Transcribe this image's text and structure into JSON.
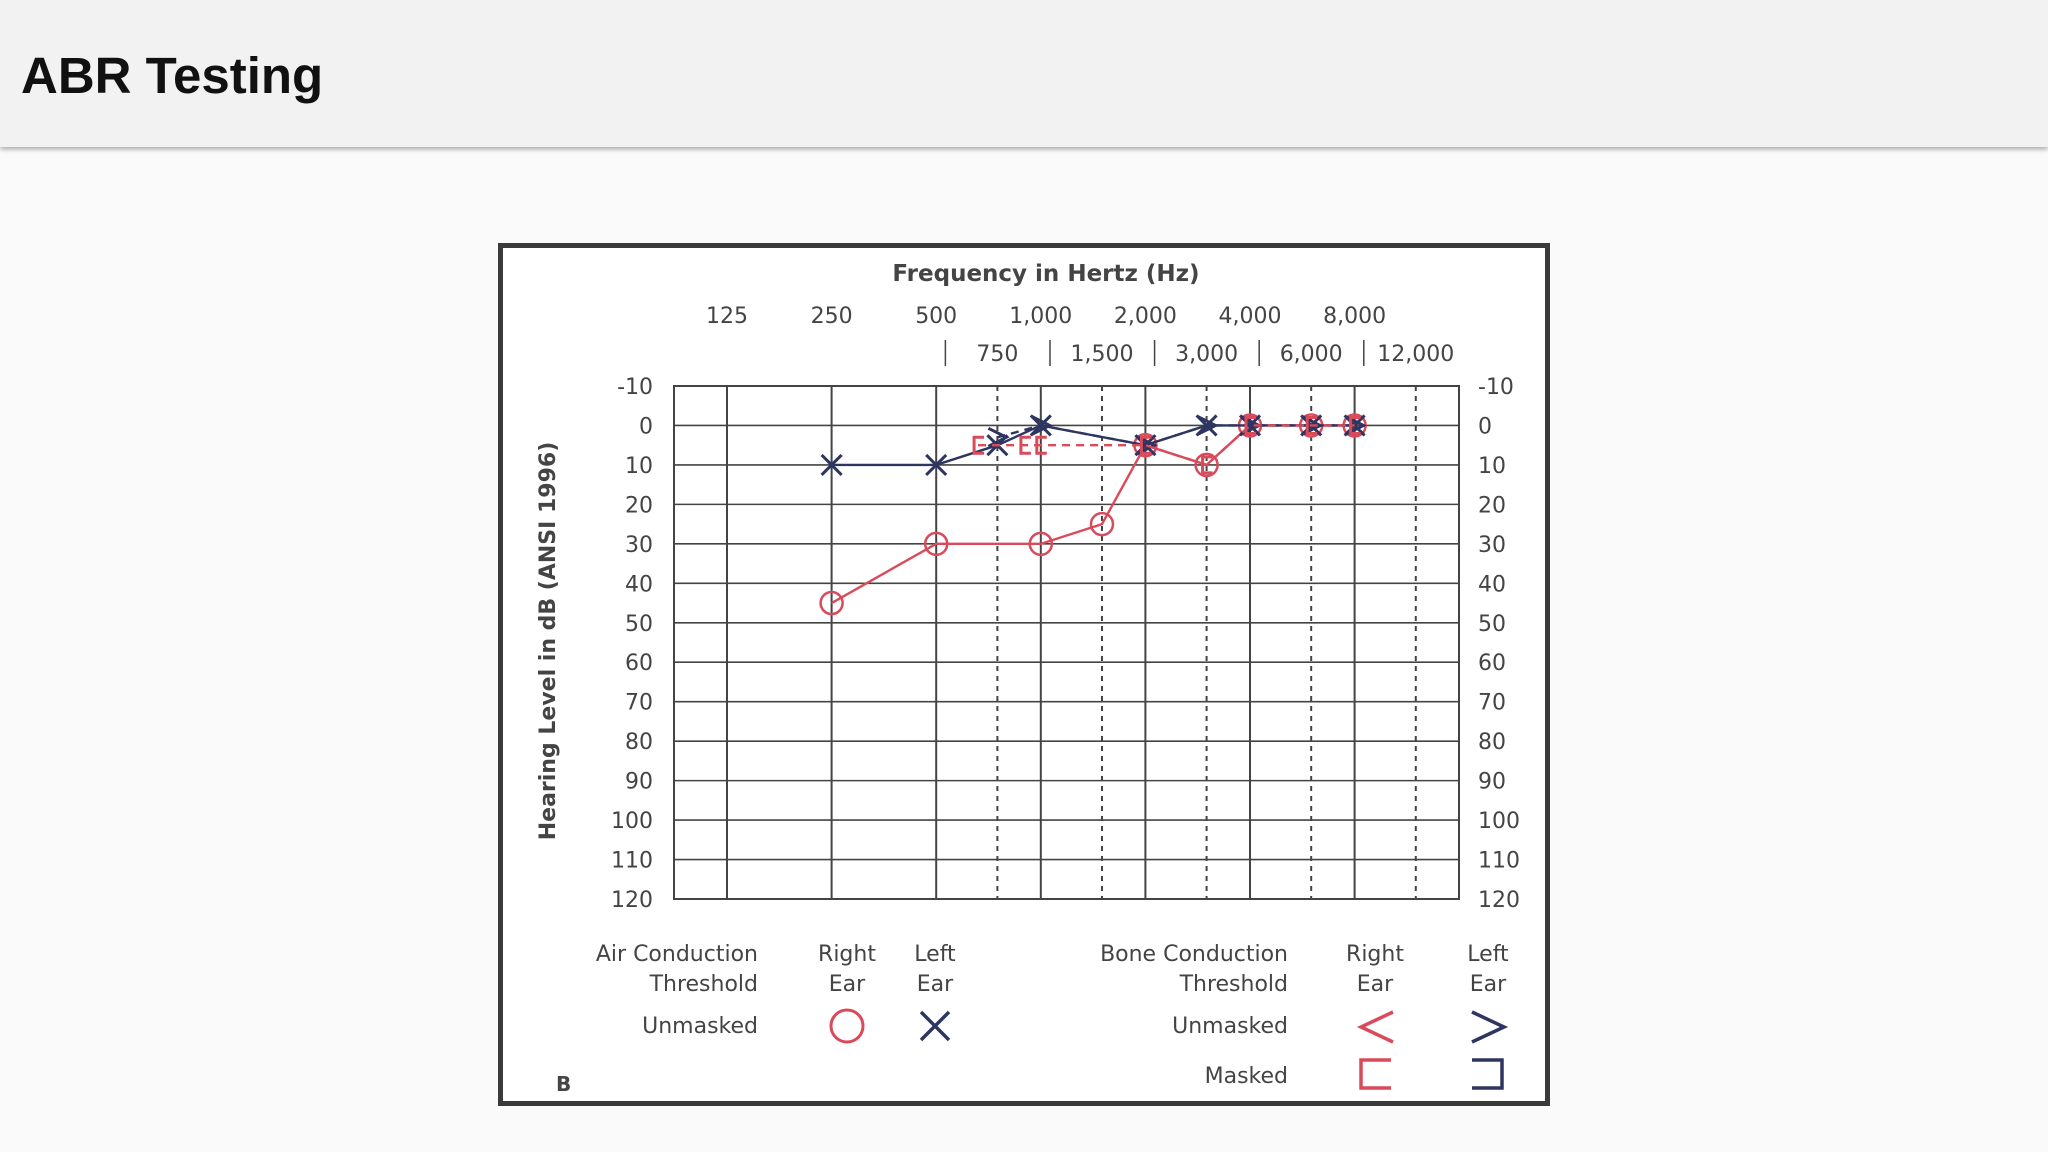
{
  "header": {
    "title": "ABR Testing"
  },
  "chart_data": {
    "type": "line",
    "title": "Frequency in Hertz (Hz)",
    "ylabel": "Hearing Level in dB (ANSI 1996)",
    "ylim": [
      -10,
      120
    ],
    "y_inverted": true,
    "x_scale": "log2",
    "grid": true,
    "x_ticks_major": [
      {
        "hz": 125,
        "label": "125"
      },
      {
        "hz": 250,
        "label": "250"
      },
      {
        "hz": 500,
        "label": "500"
      },
      {
        "hz": 1000,
        "label": "1,000"
      },
      {
        "hz": 2000,
        "label": "2,000"
      },
      {
        "hz": 4000,
        "label": "4,000"
      },
      {
        "hz": 8000,
        "label": "8,000"
      }
    ],
    "x_ticks_minor": [
      {
        "hz": 750,
        "label": "750"
      },
      {
        "hz": 1500,
        "label": "1,500"
      },
      {
        "hz": 3000,
        "label": "3,000"
      },
      {
        "hz": 6000,
        "label": "6,000"
      },
      {
        "hz": 12000,
        "label": "12,000"
      }
    ],
    "y_ticks": [
      -10,
      0,
      10,
      20,
      30,
      40,
      50,
      60,
      70,
      80,
      90,
      100,
      110,
      120
    ],
    "series": [
      {
        "name": "Air Conduction Right Ear Unmasked",
        "marker": "circle",
        "line": "solid",
        "color": "#d94a5a",
        "points": [
          [
            250,
            45
          ],
          [
            500,
            30
          ],
          [
            1000,
            30
          ],
          [
            1500,
            25
          ],
          [
            2000,
            5
          ],
          [
            3000,
            10
          ],
          [
            4000,
            0
          ],
          [
            6000,
            0
          ],
          [
            8000,
            0
          ]
        ]
      },
      {
        "name": "Air Conduction Left Ear Unmasked",
        "marker": "x",
        "line": "solid",
        "color": "#2e3560",
        "points": [
          [
            250,
            10
          ],
          [
            500,
            10
          ],
          [
            750,
            5
          ],
          [
            1000,
            0
          ],
          [
            2000,
            5
          ],
          [
            3000,
            0
          ],
          [
            4000,
            0
          ],
          [
            6000,
            0
          ],
          [
            8000,
            0
          ]
        ]
      },
      {
        "name": "Bone Conduction Left Ear Unmasked",
        "marker": "gt",
        "line": "dashed",
        "color": "#2e3560",
        "points": [
          [
            750,
            3
          ],
          [
            1000,
            0
          ],
          [
            2000,
            5
          ],
          [
            3000,
            0
          ],
          [
            4000,
            0
          ],
          [
            6000,
            0
          ],
          [
            8000,
            0
          ]
        ]
      },
      {
        "name": "Bone Conduction Right Ear Masked",
        "marker": "lbracket",
        "line": "dashed",
        "color": "#d94a5a",
        "points": [
          [
            660,
            5
          ],
          [
            900,
            5
          ],
          [
            1000,
            5
          ],
          [
            2000,
            5
          ],
          [
            3000,
            10
          ],
          [
            4000,
            0
          ],
          [
            6000,
            0
          ],
          [
            8000,
            0
          ]
        ]
      }
    ]
  },
  "legend": {
    "air_title_1": "Air Conduction",
    "air_title_2": "Threshold",
    "bone_title_1": "Bone Conduction",
    "bone_title_2": "Threshold",
    "right": "Right",
    "left": "Left",
    "ear": "Ear",
    "unmasked": "Unmasked",
    "masked": "Masked"
  },
  "panel_label": "B",
  "colors": {
    "right_ear": "#d94a5a",
    "left_ear": "#2e3560",
    "grid": "#444444"
  }
}
